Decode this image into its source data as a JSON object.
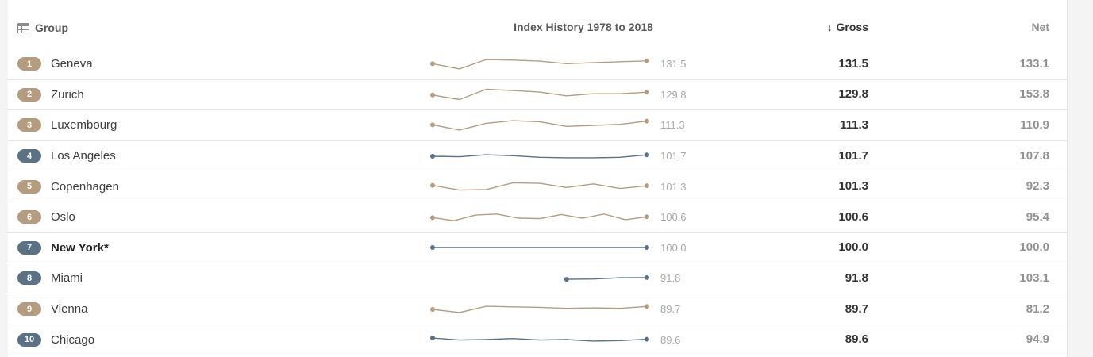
{
  "header": {
    "group_label": "Group",
    "history_label": "Index History 1978 to 2018",
    "sort_icon": "↓",
    "gross_label": "Gross",
    "net_label": "Net"
  },
  "colors": {
    "accent_tan": "#b59c7f",
    "accent_slate": "#5a7186"
  },
  "rows": [
    {
      "rank": "1",
      "city": "Geneva",
      "theme": "tan",
      "emphasis": false,
      "spark_value": "131.5",
      "gross": "131.5",
      "net": "133.1"
    },
    {
      "rank": "2",
      "city": "Zurich",
      "theme": "tan",
      "emphasis": false,
      "spark_value": "129.8",
      "gross": "129.8",
      "net": "153.8"
    },
    {
      "rank": "3",
      "city": "Luxembourg",
      "theme": "tan",
      "emphasis": false,
      "spark_value": "111.3",
      "gross": "111.3",
      "net": "110.9"
    },
    {
      "rank": "4",
      "city": "Los Angeles",
      "theme": "slate",
      "emphasis": false,
      "spark_value": "101.7",
      "gross": "101.7",
      "net": "107.8"
    },
    {
      "rank": "5",
      "city": "Copenhagen",
      "theme": "tan",
      "emphasis": false,
      "spark_value": "101.3",
      "gross": "101.3",
      "net": "92.3"
    },
    {
      "rank": "6",
      "city": "Oslo",
      "theme": "tan",
      "emphasis": false,
      "spark_value": "100.6",
      "gross": "100.6",
      "net": "95.4"
    },
    {
      "rank": "7",
      "city": "New York*",
      "theme": "slate",
      "emphasis": true,
      "spark_value": "100.0",
      "gross": "100.0",
      "net": "100.0"
    },
    {
      "rank": "8",
      "city": "Miami",
      "theme": "slate",
      "emphasis": false,
      "spark_value": "91.8",
      "gross": "91.8",
      "net": "103.1"
    },
    {
      "rank": "9",
      "city": "Vienna",
      "theme": "tan",
      "emphasis": false,
      "spark_value": "89.7",
      "gross": "89.7",
      "net": "81.2"
    },
    {
      "rank": "10",
      "city": "Chicago",
      "theme": "slate",
      "emphasis": false,
      "spark_value": "89.6",
      "gross": "89.6",
      "net": "94.9"
    }
  ],
  "chart_data": {
    "type": "line",
    "title": "Index History 1978 to 2018",
    "x_range": [
      1978,
      2018
    ],
    "grid": false,
    "legend": false,
    "series": [
      {
        "name": "Geneva",
        "x": [
          1978,
          1983,
          1988,
          1993,
          1998,
          2003,
          2008,
          2013,
          2018
        ],
        "values": [
          126,
          116,
          134,
          133,
          131,
          126,
          128,
          130,
          131.5
        ]
      },
      {
        "name": "Zurich",
        "x": [
          1978,
          1983,
          1988,
          1993,
          1998,
          2003,
          2008,
          2013,
          2018
        ],
        "values": [
          123,
          112,
          137,
          134,
          130,
          121,
          126,
          126,
          129.8
        ]
      },
      {
        "name": "Luxembourg",
        "x": [
          1978,
          1983,
          1988,
          1993,
          1998,
          2003,
          2008,
          2013,
          2018
        ],
        "values": [
          104,
          94,
          107,
          112,
          110,
          101,
          103,
          105,
          111.3
        ]
      },
      {
        "name": "Los Angeles",
        "x": [
          1978,
          1983,
          1988,
          1993,
          1998,
          2003,
          2008,
          2013,
          2018
        ],
        "values": [
          99,
          98,
          102,
          100,
          97,
          96,
          96,
          97,
          101.7
        ]
      },
      {
        "name": "Copenhagen",
        "x": [
          1978,
          1983,
          1988,
          1993,
          1998,
          2003,
          2008,
          2013,
          2018
        ],
        "values": [
          102,
          93,
          94,
          107,
          106,
          98,
          105,
          96,
          101.3
        ]
      },
      {
        "name": "Oslo",
        "x": [
          1978,
          1982,
          1986,
          1990,
          1994,
          1998,
          2002,
          2006,
          2010,
          2014,
          2018
        ],
        "values": [
          99,
          93,
          104,
          106,
          98,
          97,
          105,
          98,
          106,
          95,
          100.6
        ]
      },
      {
        "name": "New York",
        "x": [
          1978,
          1983,
          1988,
          1993,
          1998,
          2003,
          2008,
          2013,
          2018
        ],
        "values": [
          100,
          100,
          100,
          100,
          100,
          100,
          100,
          100,
          100
        ]
      },
      {
        "name": "Miami",
        "x": [
          2003,
          2008,
          2013,
          2018
        ],
        "values": [
          88.5,
          89,
          91.5,
          91.8
        ]
      },
      {
        "name": "Vienna",
        "x": [
          1978,
          1983,
          1988,
          1993,
          1998,
          2003,
          2008,
          2013,
          2018
        ],
        "values": [
          84,
          78,
          90,
          89,
          88,
          86,
          87,
          86,
          89.7
        ]
      },
      {
        "name": "Chicago",
        "x": [
          1978,
          1983,
          1988,
          1993,
          1998,
          2003,
          2008,
          2013,
          2018
        ],
        "values": [
          92,
          88,
          89,
          91,
          88,
          89,
          86,
          87,
          89.6
        ]
      }
    ]
  }
}
